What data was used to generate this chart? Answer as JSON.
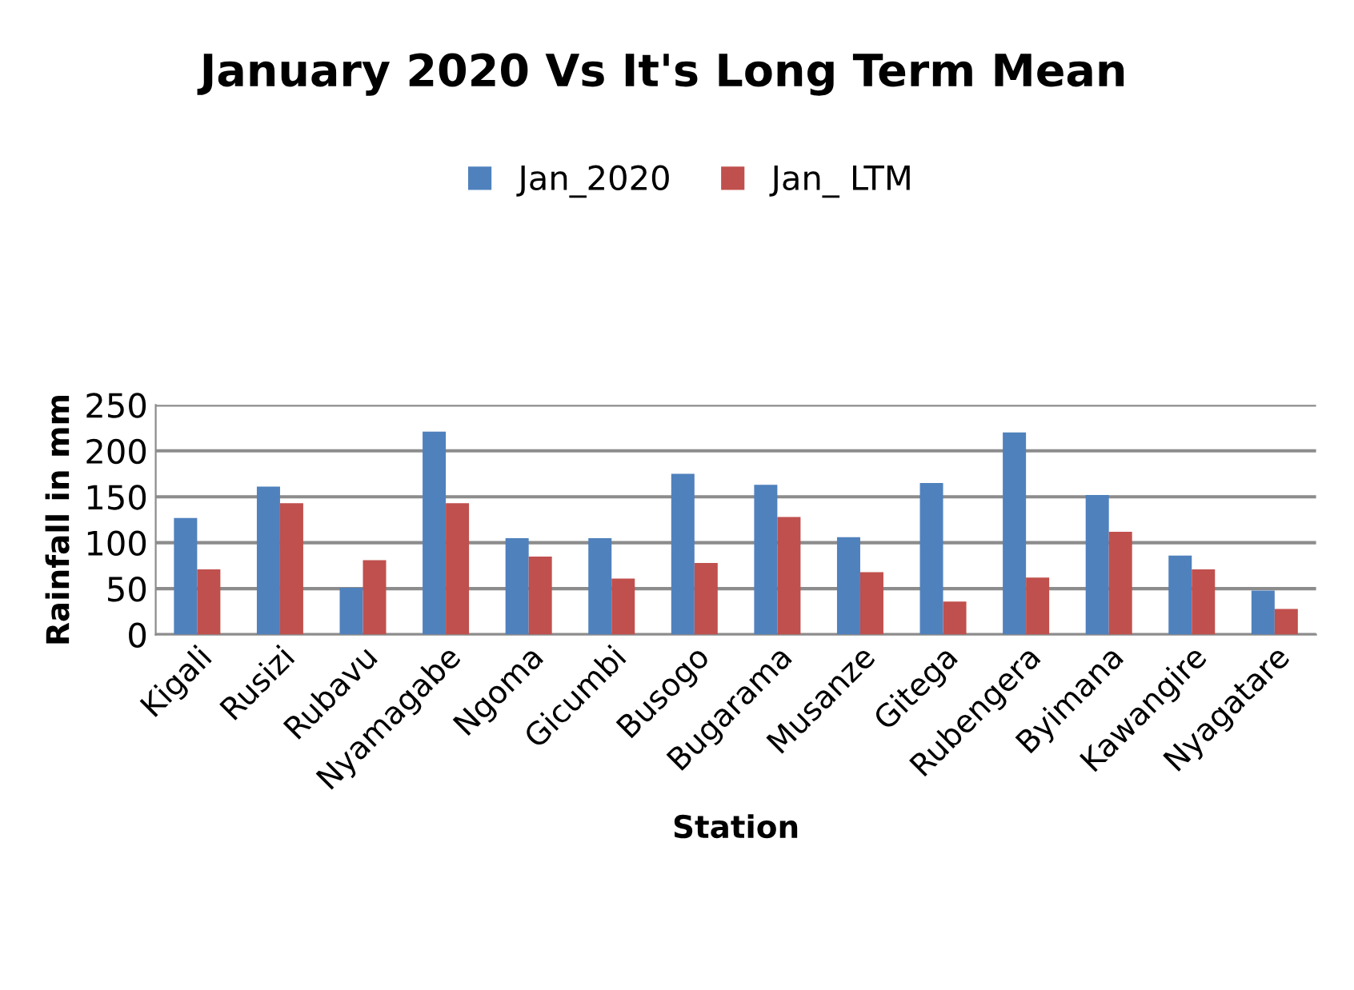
{
  "chart_data": {
    "type": "bar",
    "title": "January 2020 Vs It's Long Term Mean",
    "xlabel": "Station",
    "ylabel": "Rainfall in mm",
    "categories": [
      "Kigali",
      "Rusizi",
      "Rubavu",
      "Nyamagabe",
      "Ngoma",
      "Gicumbi",
      "Busogo",
      "Bugarama",
      "Musanze",
      "Gitega",
      "Rubengera",
      "Byimana",
      "Kawangire",
      "Nyagatare"
    ],
    "series": [
      {
        "name": "Jan_2020",
        "color": "#4f81bd",
        "values": [
          127,
          161,
          51,
          221,
          105,
          105,
          175,
          163,
          106,
          165,
          220,
          152,
          86,
          48
        ]
      },
      {
        "name": "Jan_ LTM",
        "color": "#c0504d",
        "values": [
          71,
          143,
          81,
          143,
          85,
          61,
          78,
          128,
          68,
          36,
          62,
          112,
          71,
          28
        ]
      }
    ],
    "ylim": [
      0,
      250
    ],
    "yticks": [
      0,
      50,
      100,
      150,
      200,
      250
    ],
    "grid": "y",
    "legend": "top"
  }
}
